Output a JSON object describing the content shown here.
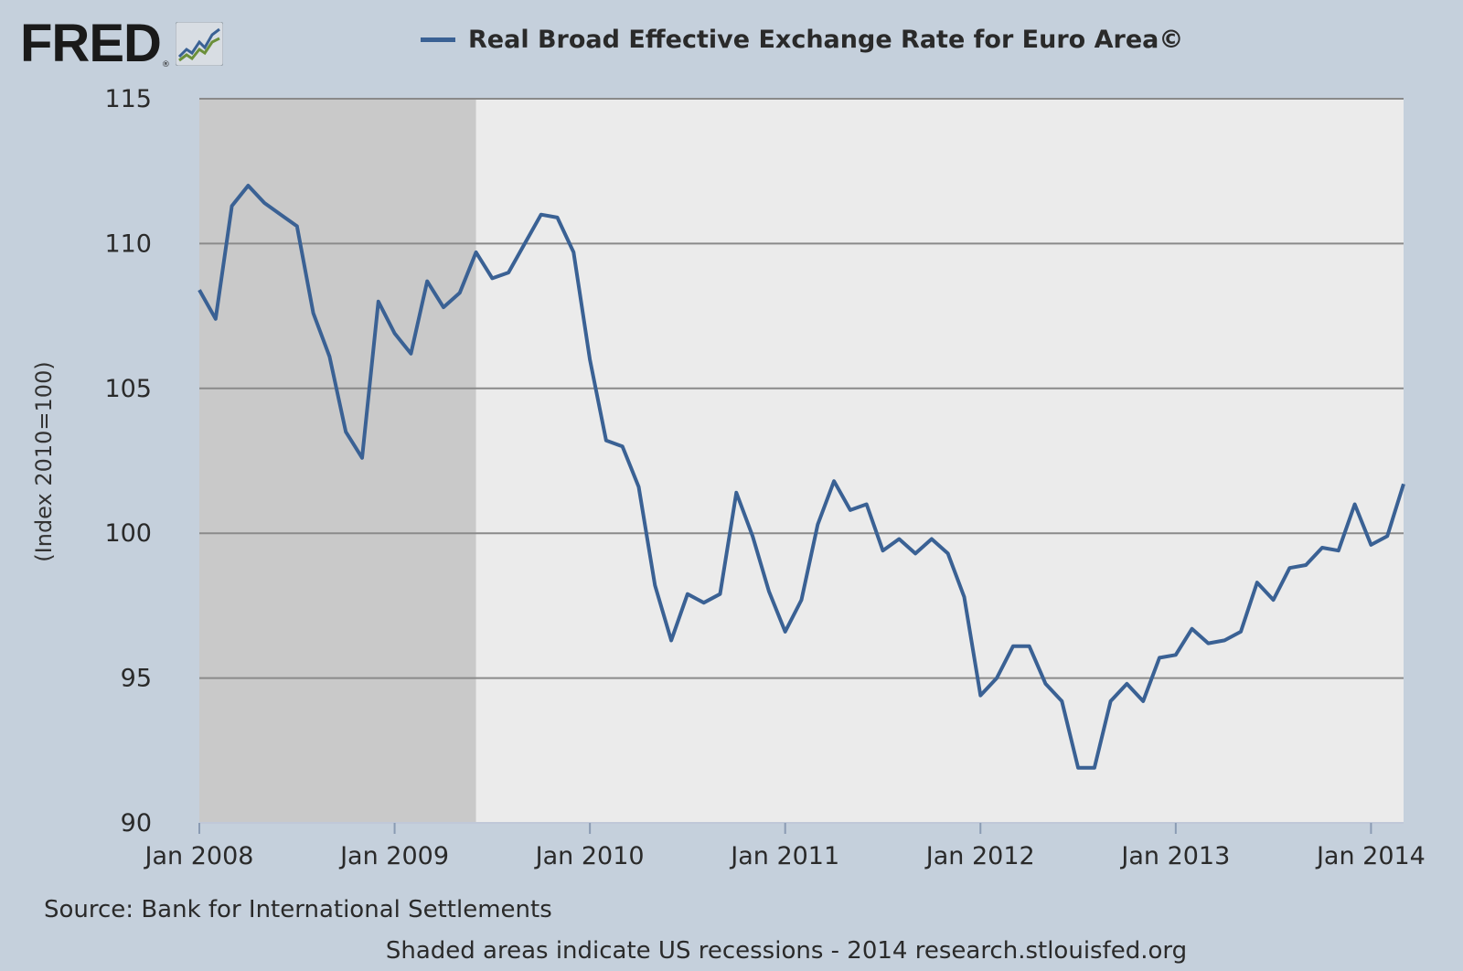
{
  "branding": {
    "logo_text": "FRED",
    "logo_reg": "®",
    "icon": "line-chart-icon"
  },
  "chart_data": {
    "type": "line",
    "title": "Real Broad Effective Exchange Rate for Euro Area©",
    "ylabel": "(Index 2010=100)",
    "xlabel": "",
    "ylim": [
      90,
      115
    ],
    "yticks": [
      "90",
      "95",
      "100",
      "105",
      "110",
      "115"
    ],
    "xticks": [
      "Jan 2008",
      "Jan 2009",
      "Jan 2010",
      "Jan 2011",
      "Jan 2012",
      "Jan 2013",
      "Jan 2014"
    ],
    "x_start": "2008-01",
    "x_end": "2014-03",
    "grid": true,
    "legend": "top-center",
    "recessions": [
      {
        "start": "2008-01",
        "end": "2009-06"
      }
    ],
    "series": [
      {
        "name": "Real Broad Effective Exchange Rate for Euro Area©",
        "color": "#3a6194",
        "x": [
          "2008-01",
          "2008-02",
          "2008-03",
          "2008-04",
          "2008-05",
          "2008-06",
          "2008-07",
          "2008-08",
          "2008-09",
          "2008-10",
          "2008-11",
          "2008-12",
          "2009-01",
          "2009-02",
          "2009-03",
          "2009-04",
          "2009-05",
          "2009-06",
          "2009-07",
          "2009-08",
          "2009-09",
          "2009-10",
          "2009-11",
          "2009-12",
          "2010-01",
          "2010-02",
          "2010-03",
          "2010-04",
          "2010-05",
          "2010-06",
          "2010-07",
          "2010-08",
          "2010-09",
          "2010-10",
          "2010-11",
          "2010-12",
          "2011-01",
          "2011-02",
          "2011-03",
          "2011-04",
          "2011-05",
          "2011-06",
          "2011-07",
          "2011-08",
          "2011-09",
          "2011-10",
          "2011-11",
          "2011-12",
          "2012-01",
          "2012-02",
          "2012-03",
          "2012-04",
          "2012-05",
          "2012-06",
          "2012-07",
          "2012-08",
          "2012-09",
          "2012-10",
          "2012-11",
          "2012-12",
          "2013-01",
          "2013-02",
          "2013-03",
          "2013-04",
          "2013-05",
          "2013-06",
          "2013-07",
          "2013-08",
          "2013-09",
          "2013-10",
          "2013-11",
          "2013-12",
          "2014-01",
          "2014-02",
          "2014-03"
        ],
        "values": [
          108.4,
          107.4,
          111.3,
          112.0,
          111.4,
          111.0,
          110.6,
          107.6,
          106.1,
          103.5,
          102.6,
          108.0,
          106.9,
          106.2,
          108.7,
          107.8,
          108.3,
          109.7,
          108.8,
          109.0,
          110.0,
          111.0,
          110.9,
          109.7,
          106.0,
          103.2,
          103.0,
          101.6,
          98.2,
          96.3,
          97.9,
          97.6,
          97.9,
          101.4,
          99.9,
          98.0,
          96.6,
          97.7,
          100.3,
          101.8,
          100.8,
          101.0,
          99.4,
          99.8,
          99.3,
          99.8,
          99.3,
          97.8,
          94.4,
          95.0,
          96.1,
          96.1,
          94.8,
          94.2,
          91.9,
          91.9,
          94.2,
          94.8,
          94.2,
          95.7,
          95.8,
          96.7,
          96.2,
          96.3,
          96.6,
          98.3,
          97.7,
          98.8,
          98.9,
          99.5,
          99.4,
          101.0,
          99.6,
          99.9,
          101.7
        ]
      }
    ]
  },
  "source": "Source: Bank for International Settlements",
  "footer": "Shaded areas indicate US recessions - 2014 research.stlouisfed.org"
}
